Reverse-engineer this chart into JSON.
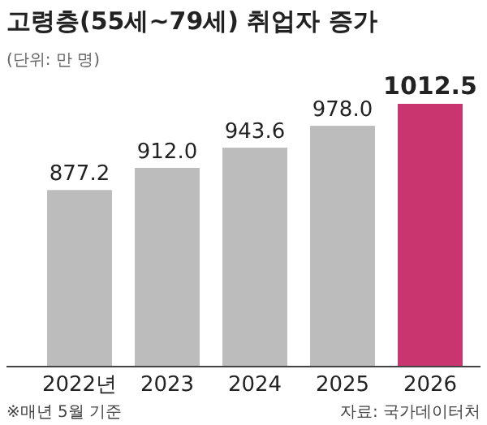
{
  "chart_data": {
    "type": "bar",
    "title": "고령층(55세~79세) 취업자 증가",
    "subtitle": "(단위: 만 명)",
    "categories": [
      "2022년",
      "2023",
      "2024",
      "2025",
      "2026"
    ],
    "values": [
      877.2,
      912.0,
      943.6,
      978.0,
      1012.5
    ],
    "value_labels": [
      "877.2",
      "912.0",
      "943.6",
      "978.0",
      "1012.5"
    ],
    "colors": [
      "#bcbcbc",
      "#bcbcbc",
      "#bcbcbc",
      "#bcbcbc",
      "#c9356f"
    ],
    "ylim": [
      600,
      1012.5
    ],
    "annotations": [
      "※매년 5월 기준",
      "자료: 국가데이터처"
    ]
  }
}
